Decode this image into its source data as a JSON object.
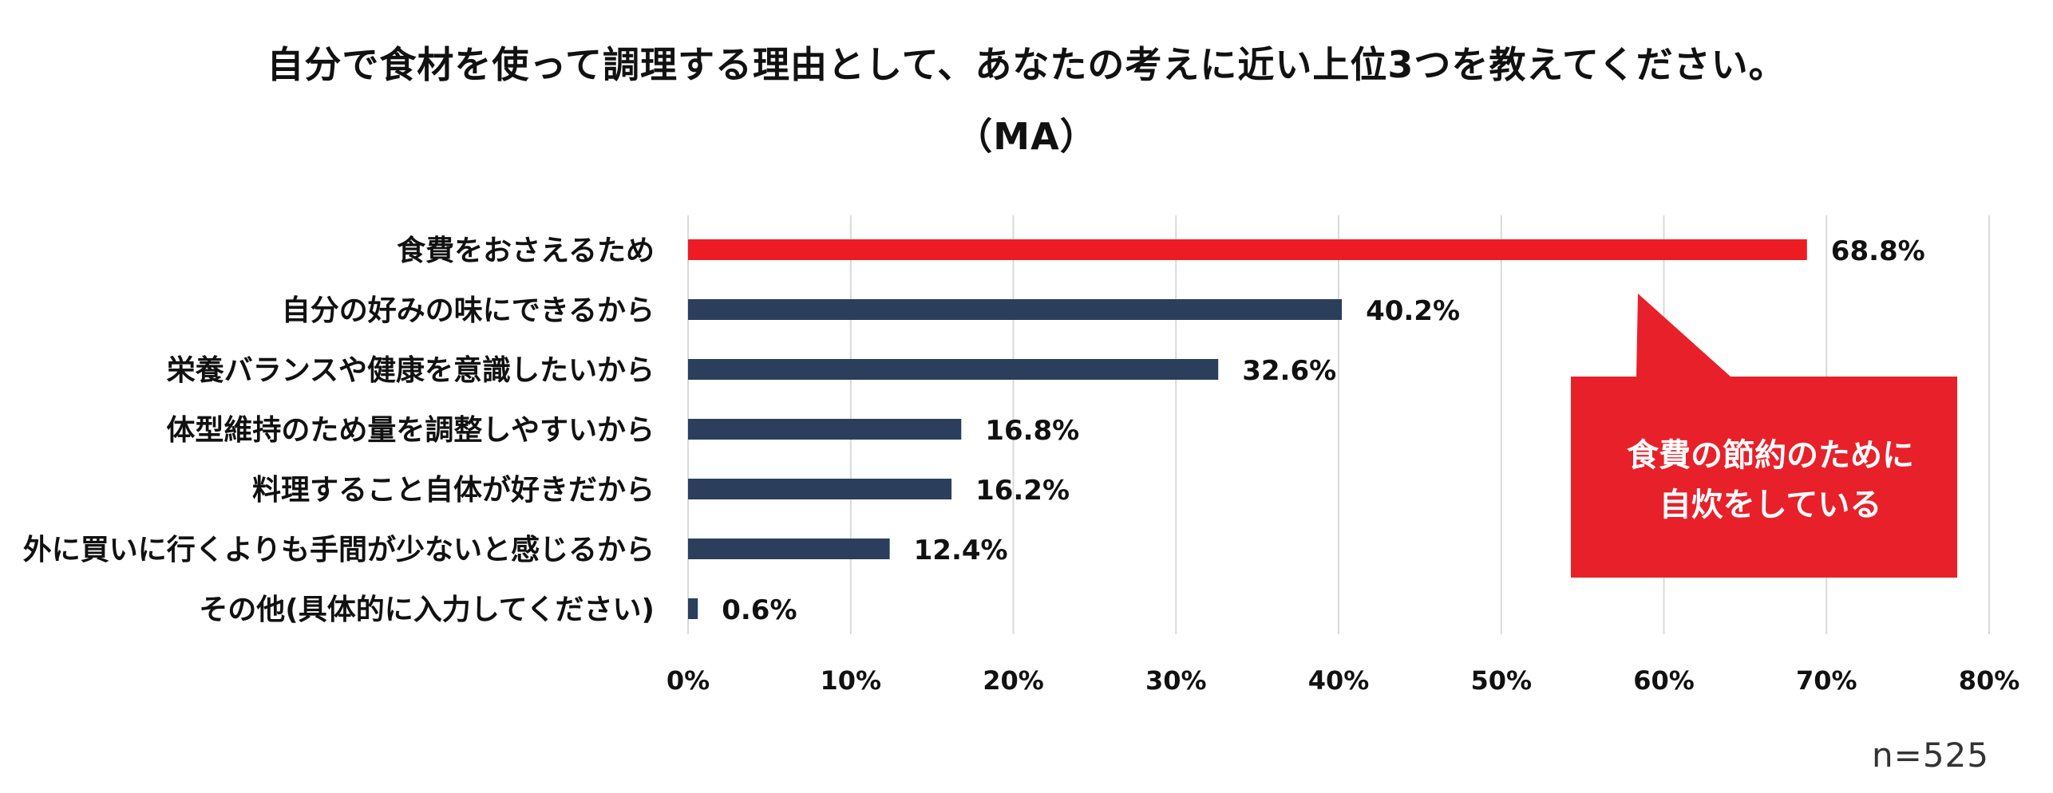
{
  "chart_data": {
    "type": "bar",
    "orientation": "horizontal",
    "title": "自分で食材を使って調理する理由として、あなたの考えに近い上位3つを教えてください。",
    "subtitle": "（MA）",
    "categories": [
      "食費をおさえるため",
      "自分の好みの味にできるから",
      "栄養バランスや健康を意識したいから",
      "体型維持のため量を調整しやすいから",
      "料理すること自体が好きだから",
      "外に買いに行くよりも手間が少ないと感じるから",
      "その他(具体的に入力してください)"
    ],
    "values": [
      68.8,
      40.2,
      32.6,
      16.8,
      16.2,
      12.4,
      0.6
    ],
    "value_labels": [
      "68.8%",
      "40.2%",
      "32.6%",
      "16.8%",
      "16.2%",
      "12.4%",
      "0.6%"
    ],
    "xlim": [
      0,
      80
    ],
    "xticks": [
      0,
      10,
      20,
      30,
      40,
      50,
      60,
      70,
      80
    ],
    "xtick_labels": [
      "0%",
      "10%",
      "20%",
      "30%",
      "40%",
      "50%",
      "60%",
      "70%",
      "80%"
    ],
    "grid": true,
    "highlight_index": 0,
    "colors": {
      "highlight": "#ED1C24",
      "default": "#2B3F5C",
      "grid": "#D9D9D9",
      "callout": "#E8202A"
    },
    "annotation": {
      "lines": [
        "食費の節約のために",
        "自炊をしている"
      ]
    },
    "sample_size": "n=525"
  }
}
